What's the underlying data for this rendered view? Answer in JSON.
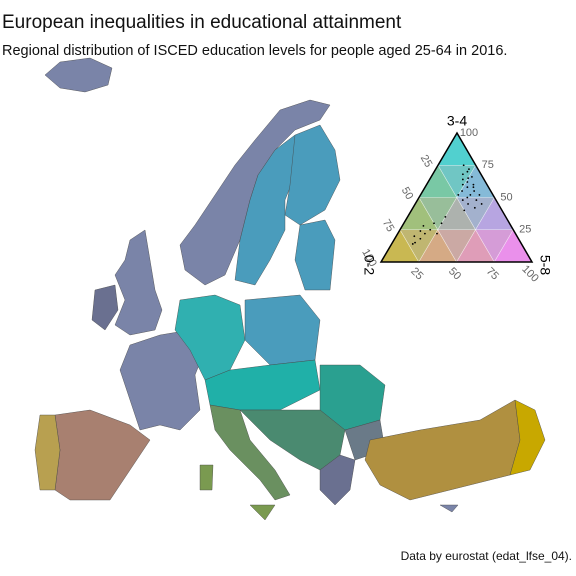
{
  "title": "European inequalities in educational attainment",
  "subtitle": "Regional distribution of ISCED education levels for people aged 25-64 in 2016.",
  "caption": "Data by eurostat (edat_lfse_04).",
  "chart_data": {
    "type": "ternary",
    "axes": [
      {
        "name": "0-2",
        "color": "#c8a800",
        "ticks": [
          25,
          50,
          75,
          100
        ]
      },
      {
        "name": "3-4",
        "color": "#00d0d0",
        "ticks": [
          25,
          50,
          75,
          100
        ]
      },
      {
        "name": "5-8",
        "color": "#ff66ff",
        "ticks": [
          25,
          50,
          75,
          100
        ]
      }
    ],
    "point_color": "#000000",
    "points": [
      [
        8,
        70,
        22
      ],
      [
        10,
        65,
        25
      ],
      [
        12,
        62,
        26
      ],
      [
        6,
        72,
        22
      ],
      [
        9,
        60,
        31
      ],
      [
        14,
        58,
        28
      ],
      [
        11,
        55,
        34
      ],
      [
        7,
        66,
        27
      ],
      [
        15,
        52,
        33
      ],
      [
        18,
        50,
        32
      ],
      [
        13,
        48,
        39
      ],
      [
        20,
        45,
        35
      ],
      [
        10,
        58,
        32
      ],
      [
        16,
        60,
        24
      ],
      [
        8,
        75,
        17
      ],
      [
        12,
        68,
        20
      ],
      [
        22,
        48,
        30
      ],
      [
        17,
        42,
        41
      ],
      [
        9,
        52,
        39
      ],
      [
        25,
        40,
        35
      ],
      [
        19,
        55,
        26
      ],
      [
        14,
        64,
        22
      ],
      [
        11,
        45,
        44
      ],
      [
        23,
        52,
        25
      ],
      [
        55,
        25,
        20
      ],
      [
        60,
        22,
        18
      ],
      [
        65,
        18,
        17
      ],
      [
        70,
        15,
        15
      ],
      [
        58,
        28,
        14
      ],
      [
        50,
        30,
        20
      ],
      [
        72,
        14,
        14
      ],
      [
        62,
        24,
        14
      ],
      [
        45,
        30,
        25
      ],
      [
        68,
        20,
        12
      ],
      [
        40,
        35,
        25
      ],
      [
        52,
        22,
        26
      ]
    ]
  }
}
